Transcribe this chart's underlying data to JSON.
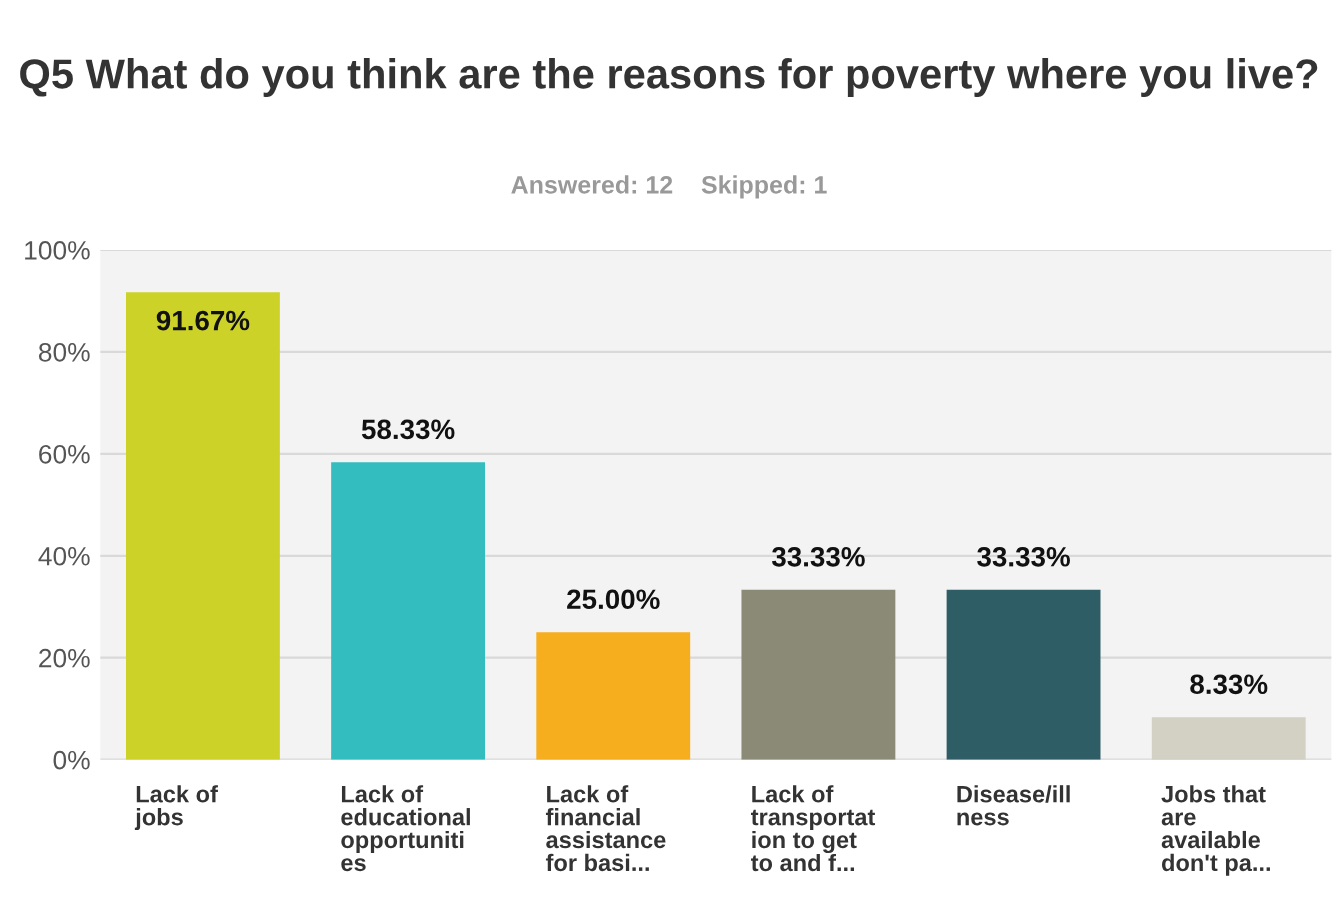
{
  "chart_data": {
    "type": "bar",
    "title": "Q5 What do you think are the reasons for poverty where you live?",
    "subtitle": "Answered: 12    Skipped: 1",
    "categories": [
      "Lack of\njobs",
      "Lack of\neducational\nopportuniti\nes",
      "Lack of\nfinancial\nassistance\nfor basi...",
      "Lack of\ntransportat\nion to get\nto and f...",
      "Disease/ill\nness",
      "Jobs that\nare\navailable\ndon't pa..."
    ],
    "values": [
      91.67,
      58.33,
      25.0,
      33.33,
      33.33,
      8.33
    ],
    "colors": [
      "#cdd228",
      "#33bdbf",
      "#f6ae1e",
      "#8a8a77",
      "#2e5d66",
      "#d3d1c3"
    ],
    "value_labels": [
      "91.67%",
      "58.33%",
      "25.00%",
      "33.33%",
      "33.33%",
      "8.33%"
    ],
    "ylim": [
      0,
      100
    ],
    "yticks": [
      {
        "value": 0,
        "label": "0%"
      },
      {
        "value": 20,
        "label": "20%"
      },
      {
        "value": 40,
        "label": "40%"
      },
      {
        "value": 60,
        "label": "60%"
      },
      {
        "value": 80,
        "label": "80%"
      },
      {
        "value": 100,
        "label": "100%"
      }
    ],
    "grid": "y"
  }
}
